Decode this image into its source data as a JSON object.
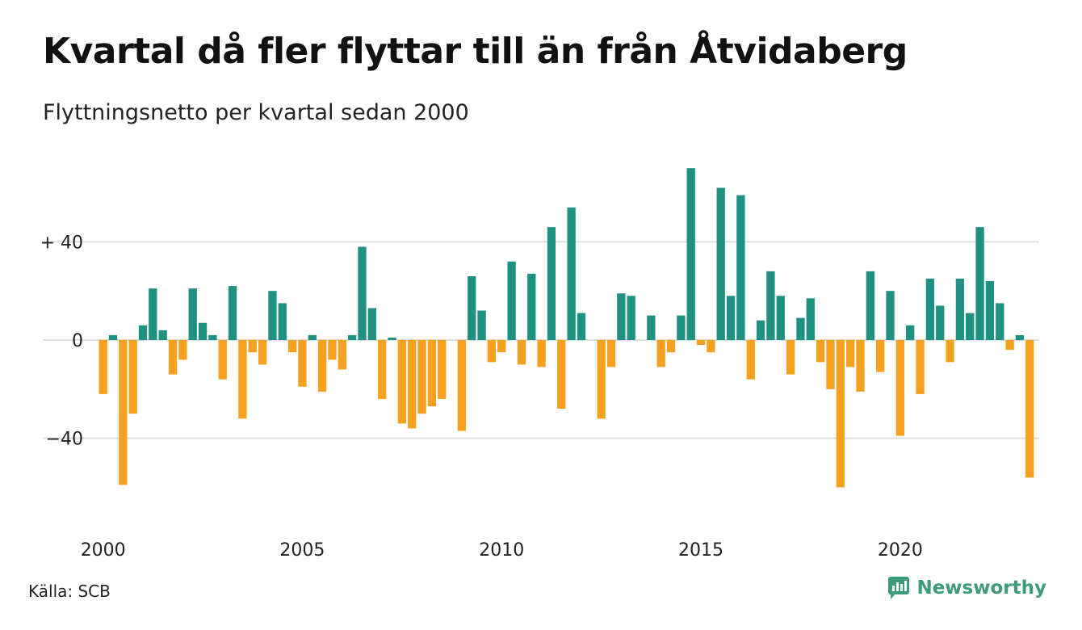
{
  "header": {
    "title": "Kvartal då fler flyttar till än från Åtvidaberg",
    "subtitle": "Flyttningsnetto per kvartal sedan 2000"
  },
  "footer": {
    "source": "Källa: SCB",
    "brand": "Newsworthy",
    "brand_icon": "newsworthy-logo-icon"
  },
  "colors": {
    "positive": "#1f9183",
    "negative": "#f5a01f",
    "grid": "#dddddd",
    "brand": "#3d9a7c"
  },
  "chart_data": {
    "type": "bar",
    "x_start": "2000Q1",
    "x_ticks": [
      "2000",
      "2005",
      "2010",
      "2015",
      "2020"
    ],
    "y_ticks": [
      {
        "value": 40,
        "label": "+ 40"
      },
      {
        "value": 0,
        "label": "0"
      },
      {
        "value": -40,
        "label": "−40"
      }
    ],
    "ylim": [
      -72,
      72
    ],
    "grid": true,
    "values": [
      -22,
      2,
      -59,
      -30,
      6,
      21,
      4,
      -14,
      -8,
      21,
      7,
      2,
      -16,
      22,
      -32,
      -5,
      -10,
      20,
      15,
      -5,
      -19,
      2,
      -21,
      -8,
      -12,
      2,
      38,
      13,
      -24,
      1,
      -34,
      -36,
      -30,
      -27,
      -24,
      0,
      -37,
      26,
      12,
      -9,
      -5,
      32,
      -10,
      27,
      -11,
      46,
      -28,
      54,
      11,
      0,
      -32,
      -11,
      19,
      18,
      0,
      10,
      -11,
      -5,
      10,
      70,
      -2,
      -5,
      62,
      18,
      59,
      -16,
      8,
      28,
      18,
      -14,
      9,
      17,
      -9,
      -20,
      -60,
      -11,
      -21,
      28,
      -13,
      20,
      -39,
      6,
      -22,
      25,
      14,
      -9,
      25,
      11,
      46,
      24,
      15,
      -4,
      2,
      -56
    ]
  }
}
